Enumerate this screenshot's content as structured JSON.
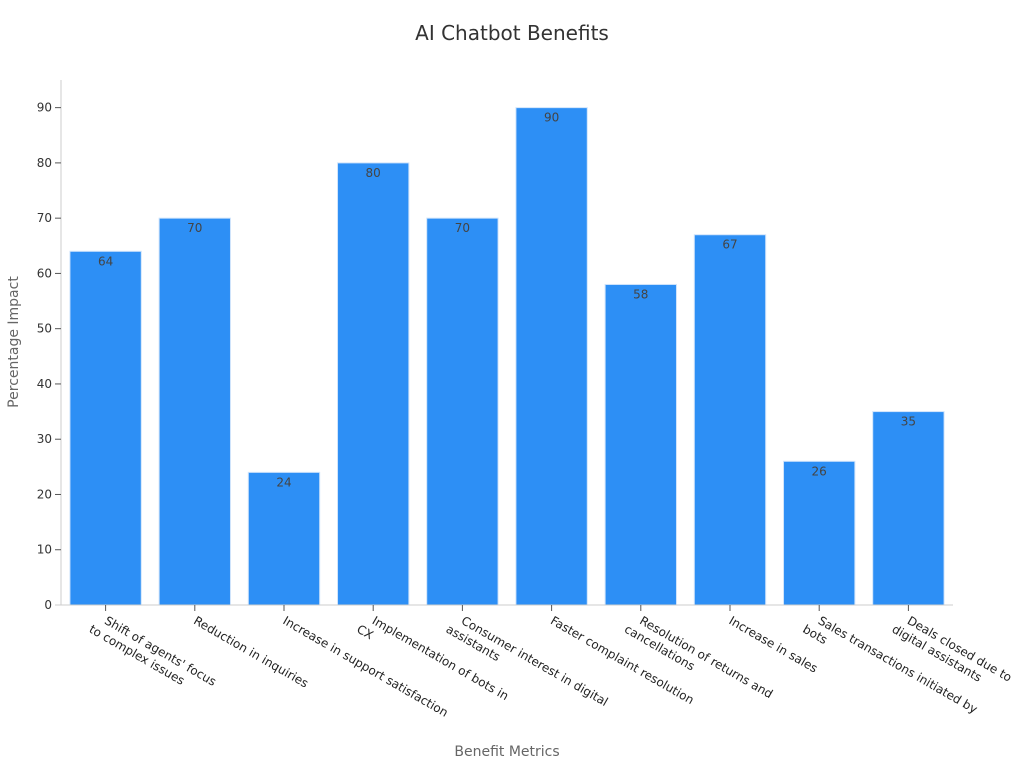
{
  "chart_data": {
    "type": "bar",
    "title": "AI Chatbot Benefits",
    "xlabel": "Benefit Metrics",
    "ylabel": "Percentage Impact",
    "categories": [
      [
        "Shift of agents' focus",
        "to complex issues"
      ],
      [
        "Reduction in inquiries"
      ],
      [
        "Increase in support satisfaction"
      ],
      [
        "Implementation of bots in",
        "CX"
      ],
      [
        "Consumer interest in digital",
        "assistants"
      ],
      [
        "Faster complaint resolution"
      ],
      [
        "Resolution of returns and",
        "cancellations"
      ],
      [
        "Increase in sales"
      ],
      [
        "Sales transactions initiated by",
        "bots"
      ],
      [
        "Deals closed due to",
        "digital assistants"
      ]
    ],
    "values": [
      64,
      70,
      24,
      80,
      70,
      90,
      58,
      67,
      26,
      35
    ],
    "ylim": [
      0,
      95
    ],
    "yticks": [
      0,
      10,
      20,
      30,
      40,
      50,
      60,
      70,
      80,
      90
    ],
    "bar_color": "#2d8ff5",
    "grid": false
  }
}
